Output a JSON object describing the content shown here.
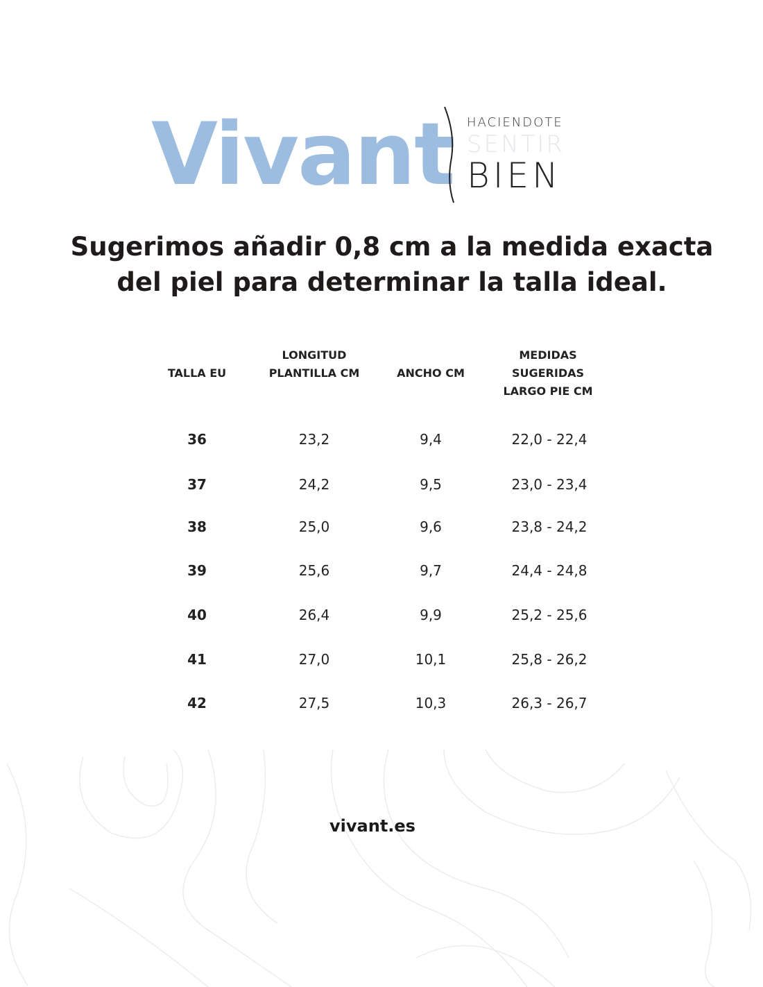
{
  "logo": {
    "brand": "Vivant",
    "tagline": [
      "HACIENDOTE",
      "SENTIR",
      "BIEN"
    ],
    "brand_color": "#9dbde0"
  },
  "headline": [
    "Sugerimos añadir 0,8 cm a la medida exacta",
    "del piel para determinar la talla ideal."
  ],
  "table": {
    "headers": [
      [
        "TALLA EU"
      ],
      [
        "LONGITUD",
        "PLANTILLA CM"
      ],
      [
        "ANCHO CM"
      ],
      [
        "MEDIDAS",
        "SUGERIDAS",
        "LARGO PIE CM"
      ]
    ],
    "rows": [
      [
        "36",
        "23,2",
        "9,4",
        "22,0 - 22,4"
      ],
      [
        "37",
        "24,2",
        "9,5",
        "23,0 - 23,4"
      ],
      [
        "38",
        "25,0",
        "9,6",
        "23,8 - 24,2"
      ],
      [
        "39",
        "25,6",
        "9,7",
        "24,4 - 24,8"
      ],
      [
        "40",
        "26,4",
        "9,9",
        "25,2  - 25,6"
      ],
      [
        "41",
        "27,0",
        "10,1",
        "25,8 - 26,2"
      ],
      [
        "42",
        "27,5",
        "10,3",
        "26,3 - 26,7"
      ]
    ]
  },
  "footer": {
    "website": "vivant.es"
  }
}
